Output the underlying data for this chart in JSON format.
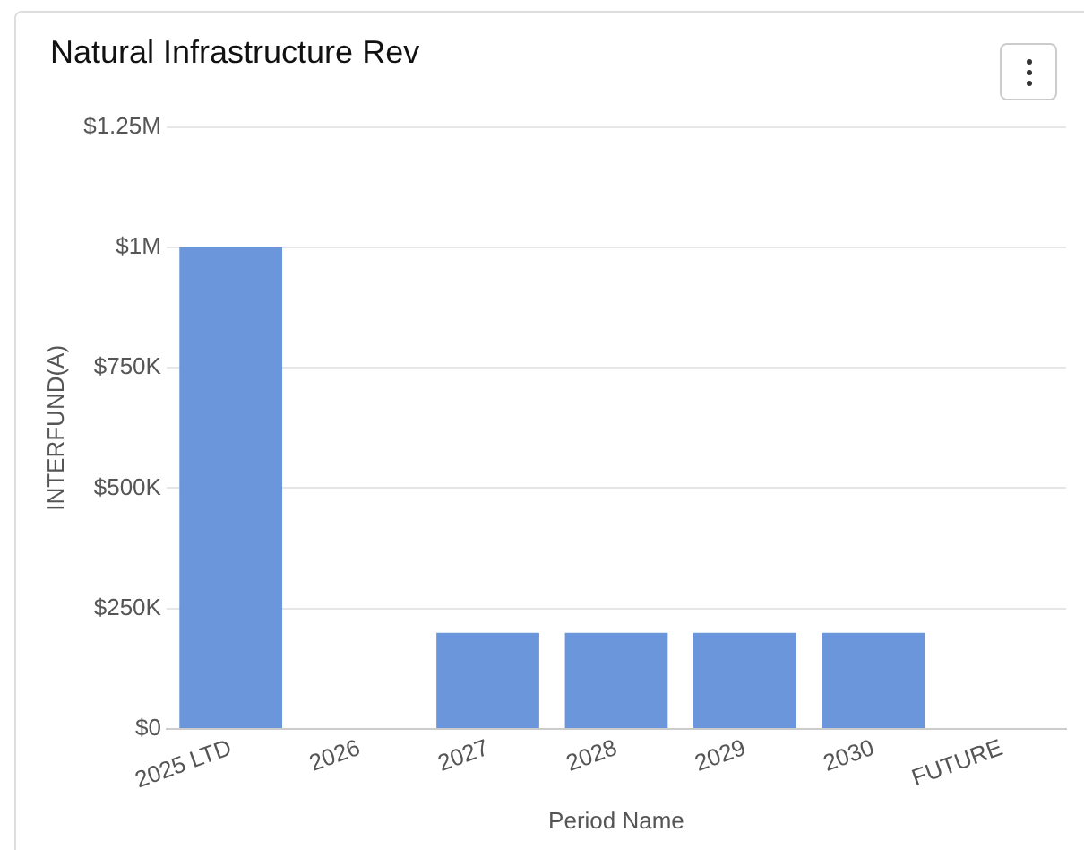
{
  "chart_data": {
    "type": "bar",
    "title": "Natural Infrastructure Rev",
    "xlabel": "Period Name",
    "ylabel": "INTERFUND(A)",
    "categories": [
      "2025 LTD",
      "2026",
      "2027",
      "2028",
      "2029",
      "2030",
      "FUTURE"
    ],
    "values": [
      1000000,
      0,
      200000,
      200000,
      200000,
      200000,
      0
    ],
    "color": "#6b96dc",
    "ylim": [
      0,
      1250000
    ],
    "yticks": [
      {
        "value": 0,
        "label": "$0"
      },
      {
        "value": 250000,
        "label": "$250K"
      },
      {
        "value": 500000,
        "label": "$500K"
      },
      {
        "value": 750000,
        "label": "$750K"
      },
      {
        "value": 1000000,
        "label": "$1M"
      },
      {
        "value": 1250000,
        "label": "$1.25M"
      }
    ],
    "grid": "y",
    "legend": false
  }
}
